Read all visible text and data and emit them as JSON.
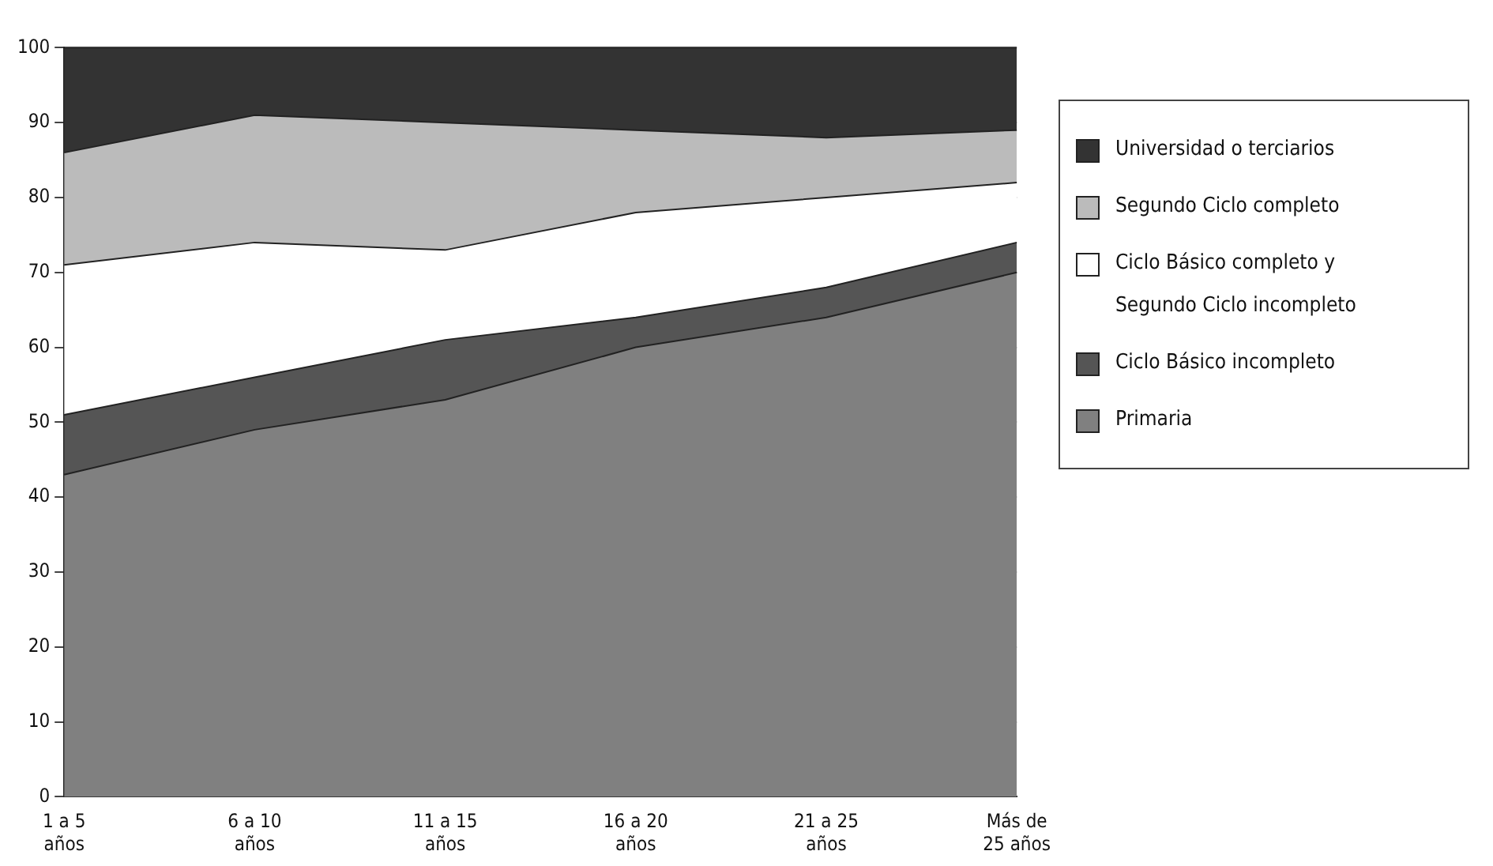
{
  "chart_data": {
    "type": "area",
    "stacked": true,
    "categories": [
      "1 a 5 años",
      "6 a 10 años",
      "11 a 15 años",
      "16 a 20 años",
      "21 a 25 años",
      "Más de 25 años"
    ],
    "series": [
      {
        "name": "Primaria",
        "color": "#808080",
        "values": [
          43,
          49,
          53,
          60,
          64,
          70
        ]
      },
      {
        "name": "Ciclo Básico incompleto",
        "color": "#555555",
        "values": [
          8,
          7,
          8,
          4,
          4,
          4
        ]
      },
      {
        "name": "Ciclo Básico completo y Segundo Ciclo incompleto",
        "color": "#ffffff",
        "values": [
          20,
          18,
          12,
          14,
          12,
          8
        ]
      },
      {
        "name": "Segundo Ciclo completo",
        "color": "#bbbbbb",
        "values": [
          15,
          17,
          17,
          11,
          8,
          7
        ]
      },
      {
        "name": "Universidad o terciarios",
        "color": "#333333",
        "values": [
          14,
          9,
          10,
          11,
          12,
          11
        ]
      }
    ],
    "ylim": [
      0,
      100
    ],
    "yticks": [
      0,
      10,
      20,
      30,
      40,
      50,
      60,
      70,
      80,
      90,
      100
    ],
    "grid": "y",
    "legend": "right"
  }
}
